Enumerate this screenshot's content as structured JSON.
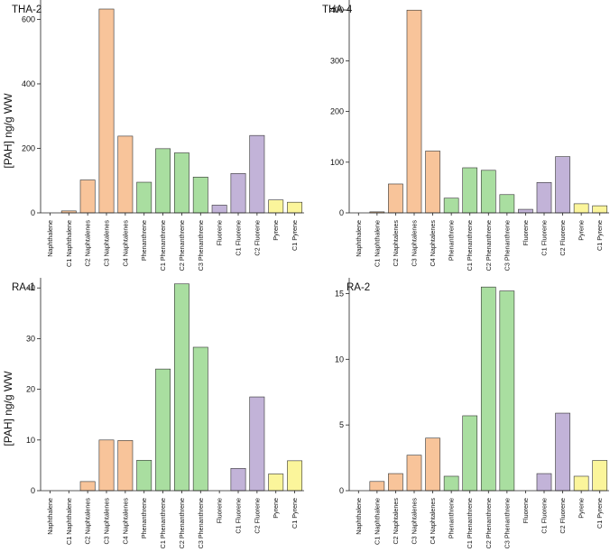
{
  "chart_data": [
    {
      "type": "bar",
      "title": "THA-2",
      "ylabel": "[PAH] ng/g WW",
      "xlabel": "",
      "ylim": [
        0,
        660
      ],
      "yticks": [
        0,
        200,
        400,
        600
      ],
      "categories": [
        "Naphthalene",
        "C1 Naphthalene",
        "C2 Naphtalenes",
        "C3 Naphtalenes",
        "C4 Naphtalenes",
        "Phenanthrene",
        "C1 Phenanthrene",
        "C2 Phenanthrene",
        "C3 Phenanthrene",
        "Fluorene",
        "C1 Fluorene",
        "C2 Fluorene",
        "Pyrene",
        "C1 Pyrene"
      ],
      "values": [
        0,
        6,
        102,
        632,
        238,
        95,
        199,
        186,
        111,
        24,
        122,
        240,
        40,
        33
      ]
    },
    {
      "type": "bar",
      "title": "THA-4",
      "ylabel": "",
      "xlabel": "",
      "ylim": [
        0,
        420
      ],
      "yticks": [
        0,
        100,
        200,
        300,
        400
      ],
      "categories": [
        "Naphthalene",
        "C1 Naphthalene",
        "C2 Naphtalenes",
        "C3 Naphtalenes",
        "C4 Naphtalenes",
        "Phenanthrene",
        "C1 Phenanthrene",
        "C2 Phenanthrene",
        "C3 Phenanthrene",
        "Fluorene",
        "C1 Fluorene",
        "C2 Fluorene",
        "Pyrene",
        "C1 Pyrene"
      ],
      "values": [
        0,
        2,
        57,
        400,
        122,
        29,
        89,
        84,
        36,
        7,
        60,
        111,
        18,
        14
      ]
    },
    {
      "type": "bar",
      "title": "RA-1",
      "ylabel": "[PAH] ng/g WW",
      "xlabel": "",
      "ylim": [
        0,
        42
      ],
      "yticks": [
        0,
        10,
        20,
        30,
        40
      ],
      "categories": [
        "Naphthalene",
        "C1 Naphthalene",
        "C2 Naphtalenes",
        "C3 Naphtalenes",
        "C4 Naphtalenes",
        "Phenanthrene",
        "C1 Phenanthrene",
        "C2 Phenanthrene",
        "C3 Phenanthrene",
        "Fluorene",
        "C1 Fluorene",
        "C2 Fluorene",
        "Pyrene",
        "C1 Pyrene"
      ],
      "values": [
        0,
        0,
        1.8,
        10,
        9.9,
        6,
        24,
        40.8,
        28.3,
        0,
        4.4,
        18.5,
        3.3,
        5.9
      ]
    },
    {
      "type": "bar",
      "title": "RA-2",
      "ylabel": "",
      "xlabel": "",
      "ylim": [
        0,
        16.2
      ],
      "yticks": [
        0,
        5,
        10,
        15
      ],
      "categories": [
        "Naphthalene",
        "C1 Naphthalene",
        "C2 Naphtalenes",
        "C3 Naphtalenes",
        "C4 Naphtalenes",
        "Phenanthrene",
        "C1 Phenanthrene",
        "C2 Phenanthrene",
        "C3 Phenanthrene",
        "Fluorene",
        "C1 Fluorene",
        "C2 Fluorene",
        "Pyrene",
        "C1 Pyrene"
      ],
      "values": [
        0,
        0.7,
        1.3,
        2.7,
        4,
        1.1,
        5.7,
        15.5,
        15.2,
        0,
        1.3,
        5.9,
        1.1,
        2.3
      ]
    }
  ],
  "colors": {
    "naphthalenes": "#f8c49a",
    "phenanthrenes": "#a9dea0",
    "fluorenes": "#c2b3d8",
    "pyrenes": "#fbf59b",
    "axis": "#222222"
  },
  "bar_groups": [
    "naphthalenes",
    "naphthalenes",
    "naphthalenes",
    "naphthalenes",
    "naphthalenes",
    "phenanthrenes",
    "phenanthrenes",
    "phenanthrenes",
    "phenanthrenes",
    "fluorenes",
    "fluorenes",
    "fluorenes",
    "pyrenes",
    "pyrenes"
  ]
}
